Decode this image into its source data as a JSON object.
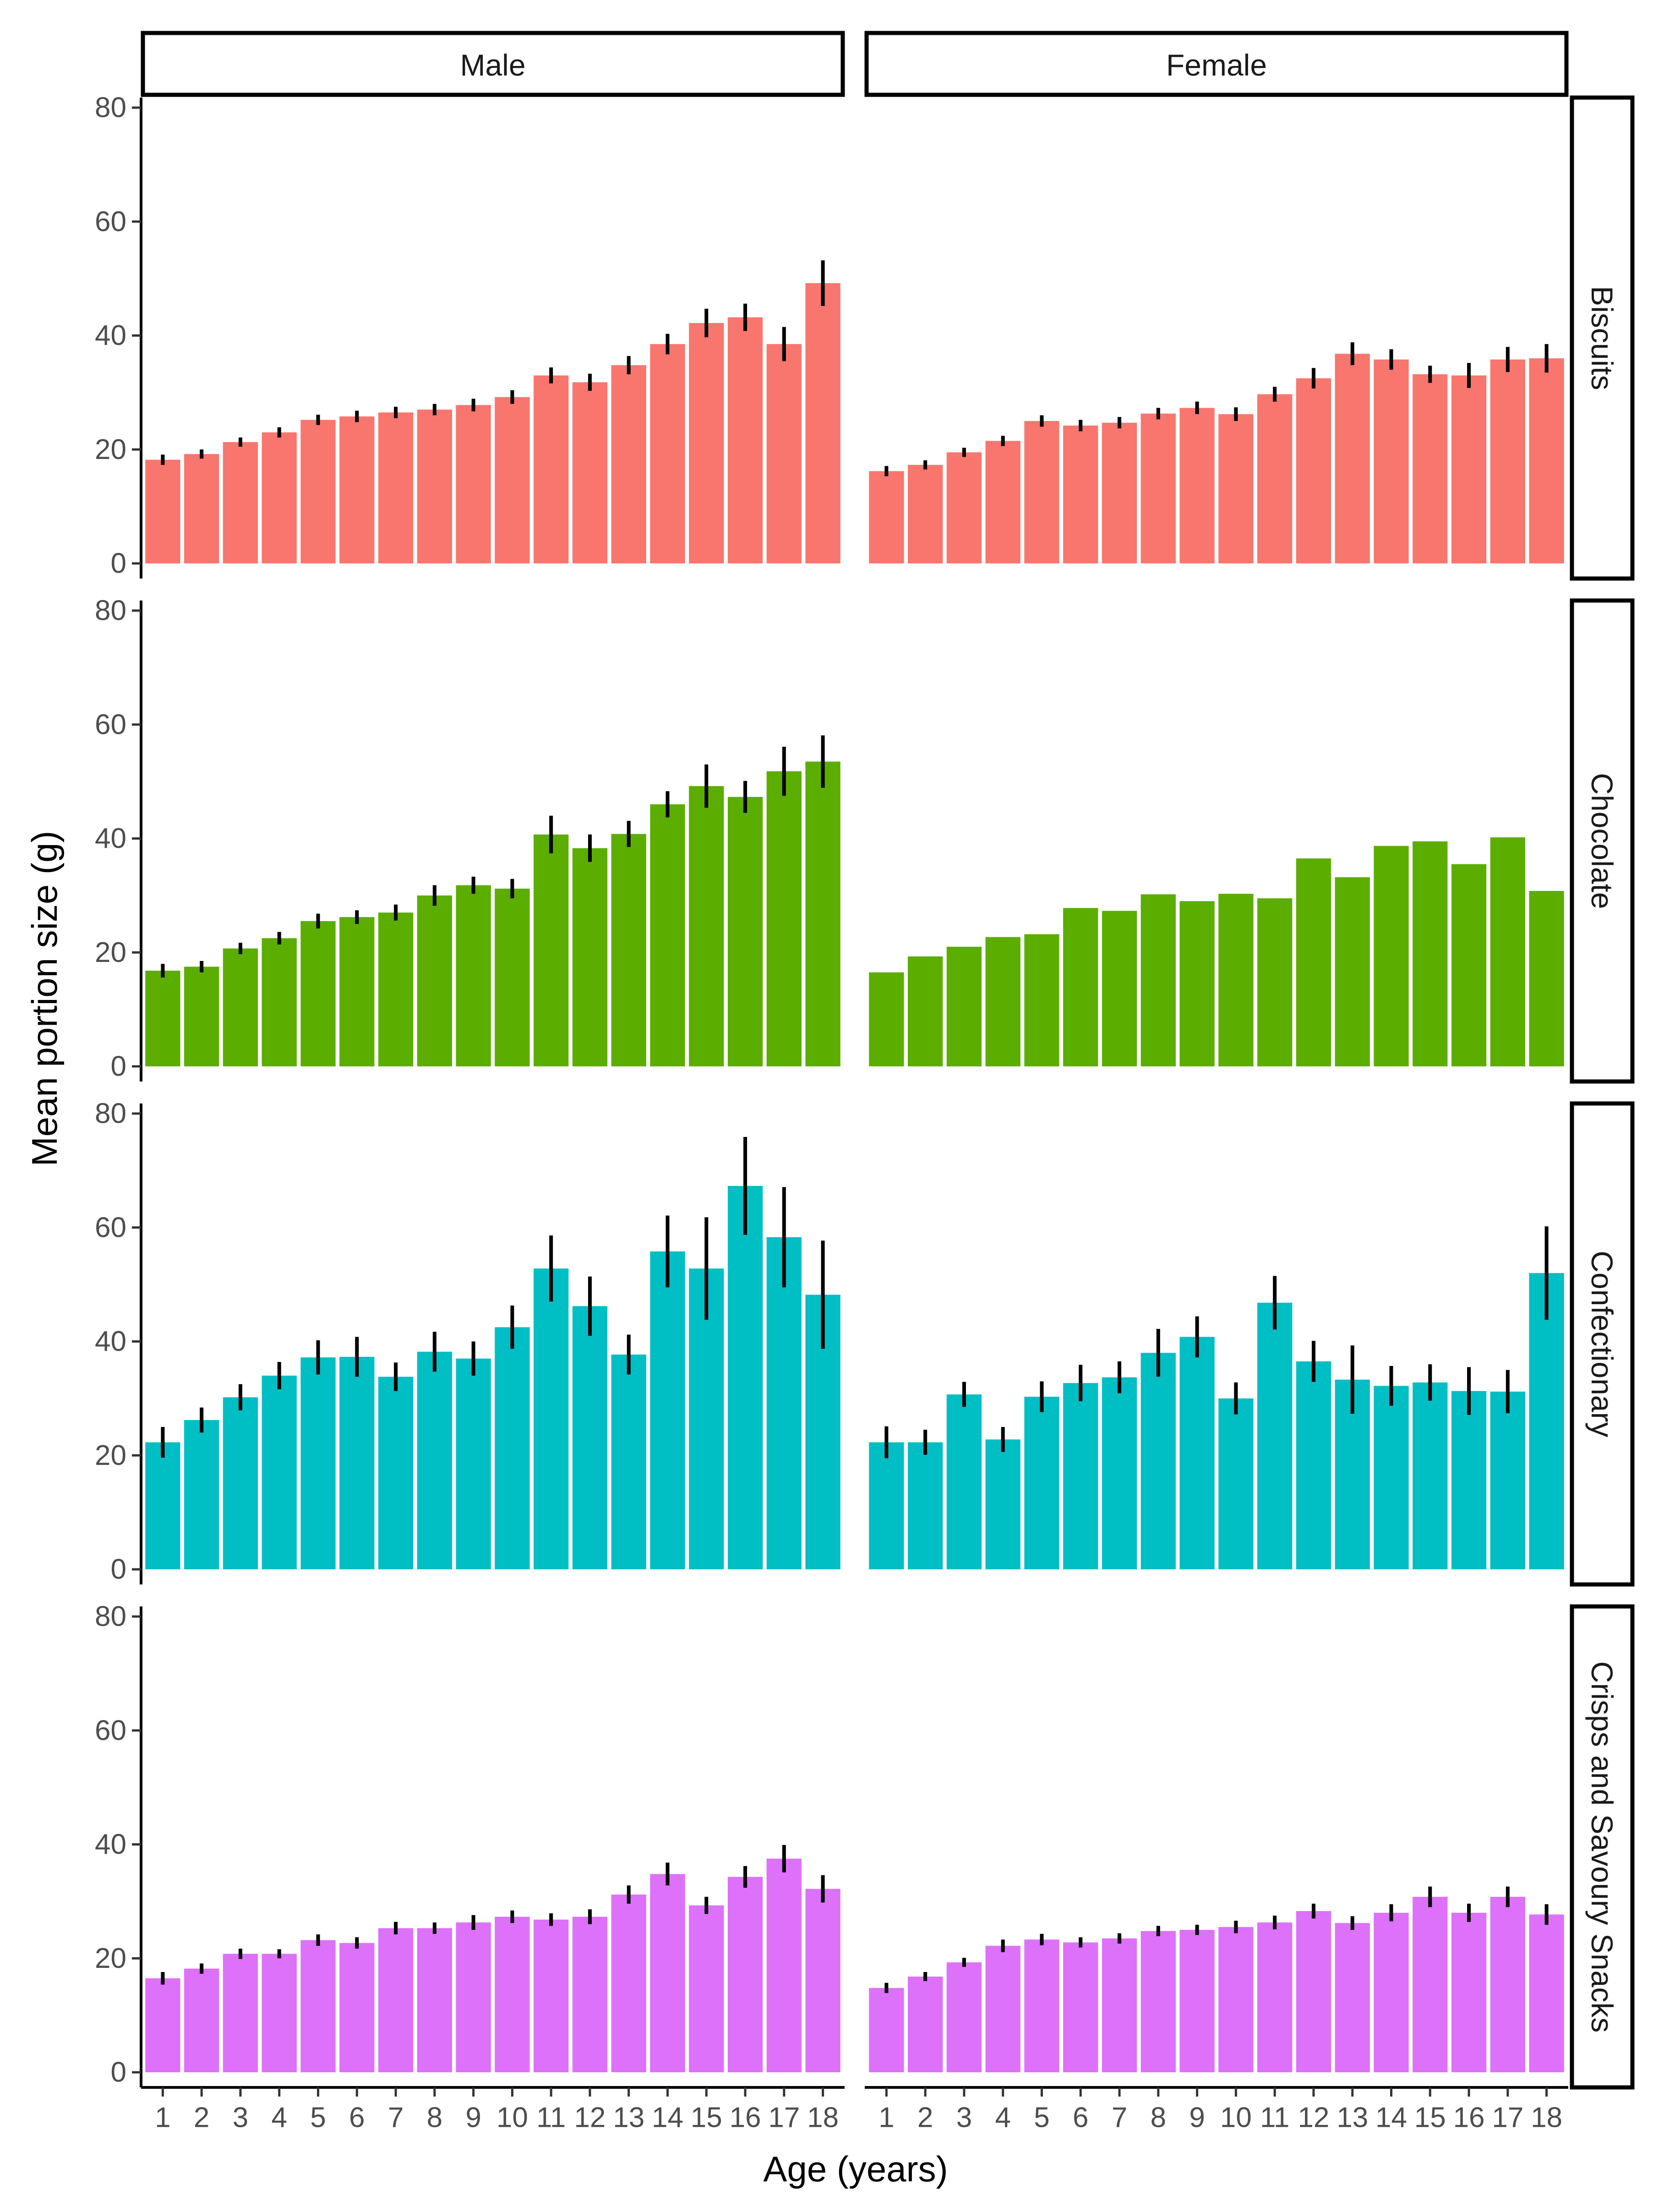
{
  "chart_data": {
    "type": "bar",
    "ylabel": "Mean portion size (g)",
    "xlabel": "Age (years)",
    "ylim": [
      0,
      83
    ],
    "yticks": [
      0,
      20,
      40,
      60,
      80
    ],
    "grid": false,
    "legend": "none",
    "facets": {
      "columns": [
        "Male",
        "Female"
      ],
      "rows": [
        "Biscuits",
        "Chocolate",
        "Confectionary",
        "Crisps and Savoury Snacks"
      ]
    },
    "categories": [
      "1",
      "2",
      "3",
      "4",
      "5",
      "6",
      "7",
      "8",
      "9",
      "10",
      "11",
      "12",
      "13",
      "14",
      "15",
      "16",
      "17",
      "18"
    ],
    "panels": [
      {
        "row": "Biscuits",
        "column": "Male",
        "color": "#F8766D",
        "values": [
          18.2,
          19.2,
          21.3,
          23.0,
          25.2,
          25.8,
          26.5,
          27.0,
          27.8,
          29.2,
          33.0,
          31.8,
          34.8,
          38.5,
          42.2,
          43.2,
          38.5,
          49.2
        ],
        "errors": [
          0.9,
          0.8,
          0.8,
          0.9,
          0.9,
          1.0,
          1.0,
          1.0,
          1.1,
          1.2,
          1.4,
          1.5,
          1.6,
          1.8,
          2.5,
          2.4,
          3.0,
          4.0
        ]
      },
      {
        "row": "Biscuits",
        "column": "Female",
        "color": "#F8766D",
        "values": [
          16.2,
          17.3,
          19.5,
          21.5,
          25.0,
          24.2,
          24.7,
          26.3,
          27.3,
          26.2,
          29.7,
          32.5,
          36.8,
          35.8,
          33.2,
          33.0,
          35.8,
          36.0
        ],
        "errors": [
          0.9,
          0.8,
          0.8,
          0.9,
          1.0,
          1.0,
          1.0,
          1.0,
          1.1,
          1.2,
          1.3,
          1.8,
          2.0,
          1.8,
          1.5,
          2.2,
          2.2,
          2.5
        ]
      },
      {
        "row": "Chocolate",
        "column": "Male",
        "color": "#5BAE00",
        "values": [
          16.8,
          17.5,
          20.7,
          22.5,
          25.5,
          26.2,
          27.0,
          30.0,
          31.8,
          31.2,
          40.7,
          38.3,
          40.8,
          46.0,
          49.2,
          47.3,
          51.8,
          53.5
        ],
        "errors": [
          1.2,
          1.0,
          1.0,
          1.1,
          1.3,
          1.2,
          1.4,
          1.8,
          1.5,
          1.7,
          3.3,
          2.4,
          2.3,
          2.3,
          3.8,
          2.8,
          4.3,
          4.6
        ]
      },
      {
        "row": "Chocolate",
        "column": "Female",
        "color": "#5BAE00",
        "values": [
          16.5,
          19.3,
          21.0,
          22.7,
          23.2,
          27.8,
          27.3,
          30.2,
          29.0,
          30.3,
          29.5,
          36.5,
          33.2,
          38.7,
          39.5,
          35.5,
          40.2,
          30.8
        ]
      },
      {
        "row": "Confectionary",
        "column": "Male",
        "color": "#00BFC4",
        "values": [
          22.3,
          26.2,
          30.2,
          34.0,
          37.2,
          37.3,
          33.8,
          38.2,
          37.0,
          42.5,
          52.8,
          46.2,
          37.7,
          55.8,
          52.8,
          67.3,
          58.3,
          48.2
        ],
        "errors": [
          2.7,
          2.2,
          2.3,
          2.4,
          3.0,
          3.5,
          2.5,
          3.5,
          3.0,
          3.8,
          5.8,
          5.2,
          3.5,
          6.3,
          9.0,
          8.6,
          8.8,
          9.5
        ]
      },
      {
        "row": "Confectionary",
        "column": "Female",
        "color": "#00BFC4",
        "values": [
          22.3,
          22.3,
          30.7,
          22.8,
          30.3,
          32.7,
          33.7,
          38.0,
          40.8,
          30.0,
          46.8,
          36.5,
          33.3,
          32.2,
          32.8,
          31.3,
          31.2,
          52.0
        ],
        "errors": [
          2.8,
          2.2,
          2.2,
          2.2,
          2.7,
          3.2,
          2.8,
          4.2,
          3.6,
          2.8,
          4.7,
          3.6,
          6.0,
          3.5,
          3.2,
          4.2,
          3.8,
          8.2
        ]
      },
      {
        "row": "Crisps and Savoury Snacks",
        "column": "Male",
        "color": "#DD71FA",
        "values": [
          16.5,
          18.2,
          20.8,
          20.8,
          23.2,
          22.7,
          25.3,
          25.3,
          26.3,
          27.3,
          26.8,
          27.3,
          31.2,
          34.8,
          29.3,
          34.3,
          37.5,
          32.2
        ],
        "errors": [
          1.1,
          0.9,
          0.9,
          0.8,
          1.0,
          1.0,
          1.1,
          1.0,
          1.3,
          1.1,
          1.1,
          1.3,
          1.6,
          2.0,
          1.5,
          1.9,
          2.4,
          2.4
        ]
      },
      {
        "row": "Crisps and Savoury Snacks",
        "column": "Female",
        "color": "#DD71FA",
        "values": [
          14.8,
          16.8,
          19.3,
          22.2,
          23.3,
          22.8,
          23.5,
          24.8,
          25.0,
          25.5,
          26.3,
          28.3,
          26.2,
          28.0,
          30.8,
          28.0,
          30.8,
          27.7
        ],
        "errors": [
          0.9,
          0.8,
          0.8,
          1.1,
          1.0,
          0.9,
          0.9,
          0.9,
          0.9,
          1.1,
          1.2,
          1.3,
          1.2,
          1.5,
          1.8,
          1.6,
          1.8,
          1.8
        ]
      }
    ]
  }
}
